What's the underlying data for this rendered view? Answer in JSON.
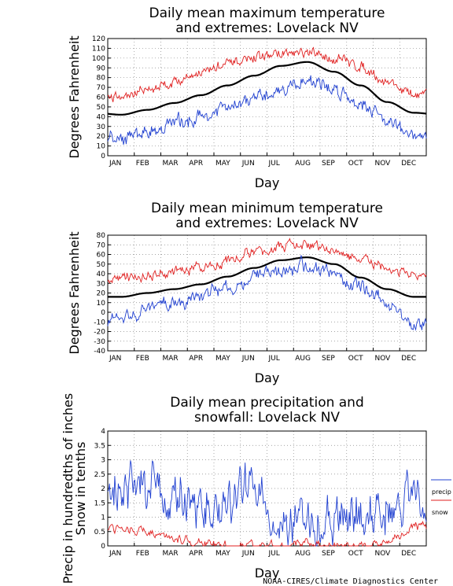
{
  "credit": "NOAA-CIRES/Climate Diagnostics Center",
  "colors": {
    "mean": "#000000",
    "max": "#e02020",
    "min": "#2040d0",
    "grid": "#888888"
  },
  "chart_data": [
    {
      "type": "line",
      "title_lines": [
        "Daily mean maximum temperature",
        "and extremes: Lovelack NV"
      ],
      "xlabel": "Day",
      "ylabel": "Degrees Fahrenheit",
      "months": [
        "JAN",
        "FEB",
        "MAR",
        "APR",
        "MAY",
        "JUN",
        "JUL",
        "AUG",
        "SEP",
        "OCT",
        "NOV",
        "DEC"
      ],
      "ylim": [
        0,
        120
      ],
      "yticks": [
        0,
        10,
        20,
        30,
        40,
        50,
        60,
        70,
        80,
        90,
        100,
        110,
        120
      ],
      "grid": true,
      "series": [
        {
          "role": "mean",
          "color": "#000000",
          "month_values": [
            42,
            47,
            54,
            62,
            72,
            82,
            92,
            96,
            86,
            72,
            55,
            44
          ],
          "wiggle": 0
        },
        {
          "role": "max",
          "color": "#e02020",
          "month_values": [
            60,
            68,
            76,
            86,
            93,
            100,
            105,
            104,
            100,
            92,
            76,
            62
          ],
          "wiggle": 5
        },
        {
          "role": "min",
          "color": "#2040d0",
          "month_values": [
            18,
            25,
            33,
            40,
            48,
            57,
            68,
            78,
            68,
            55,
            38,
            18
          ],
          "wiggle": 7
        }
      ]
    },
    {
      "type": "line",
      "title_lines": [
        "Daily mean minimum temperature",
        "and extremes: Lovelack NV"
      ],
      "xlabel": "Day",
      "ylabel": "Degrees Fahrenheit",
      "months": [
        "JAN",
        "FEB",
        "MAR",
        "APR",
        "MAY",
        "JUN",
        "JUL",
        "AUG",
        "SEP",
        "OCT",
        "NOV",
        "DEC"
      ],
      "ylim": [
        -40,
        80
      ],
      "yticks": [
        -40,
        -30,
        -20,
        -10,
        0,
        10,
        20,
        30,
        40,
        50,
        60,
        70,
        80
      ],
      "grid": true,
      "series": [
        {
          "role": "mean",
          "color": "#000000",
          "month_values": [
            16,
            20,
            24,
            29,
            37,
            46,
            54,
            57,
            50,
            36,
            24,
            16
          ],
          "wiggle": 0
        },
        {
          "role": "max",
          "color": "#e02020",
          "month_values": [
            35,
            38,
            41,
            46,
            54,
            62,
            68,
            70,
            63,
            55,
            44,
            38
          ],
          "wiggle": 5
        },
        {
          "role": "min",
          "color": "#2040d0",
          "month_values": [
            -8,
            4,
            10,
            18,
            26,
            36,
            44,
            48,
            40,
            25,
            10,
            -15
          ],
          "wiggle": 7
        }
      ]
    },
    {
      "type": "line",
      "title_lines": [
        "Daily mean precipitation and",
        "snowfall: Lovelack NV"
      ],
      "xlabel": "Day",
      "ylabel": [
        "Precip in hundredths of inches",
        "Snow in tenths"
      ],
      "months": [
        "JAN",
        "FEB",
        "MAR",
        "APR",
        "MAY",
        "JUN",
        "JUL",
        "AUG",
        "SEP",
        "OCT",
        "NOV",
        "DEC"
      ],
      "ylim": [
        0,
        4
      ],
      "yticks": [
        0,
        0.5,
        1,
        1.5,
        2,
        2.5,
        3,
        3.5,
        4
      ],
      "grid": true,
      "legend": {
        "placement": "right",
        "entries": [
          {
            "name": "precip",
            "color": "#2040d0"
          },
          {
            "name": "snow",
            "color": "#e02020"
          }
        ]
      },
      "series": [
        {
          "role": "precip",
          "name": "precip",
          "color": "#2040d0",
          "month_values": [
            2.0,
            2.3,
            1.6,
            1.3,
            1.3,
            2.2,
            0.8,
            0.7,
            0.8,
            1.0,
            1.1,
            1.7
          ],
          "wiggle": 0.8
        },
        {
          "role": "snow",
          "name": "snow",
          "color": "#e02020",
          "month_values": [
            0.6,
            0.5,
            0.2,
            0.1,
            0.0,
            0.0,
            0.0,
            0.0,
            0.0,
            0.0,
            0.1,
            0.7
          ],
          "wiggle": 0.15
        }
      ]
    }
  ]
}
